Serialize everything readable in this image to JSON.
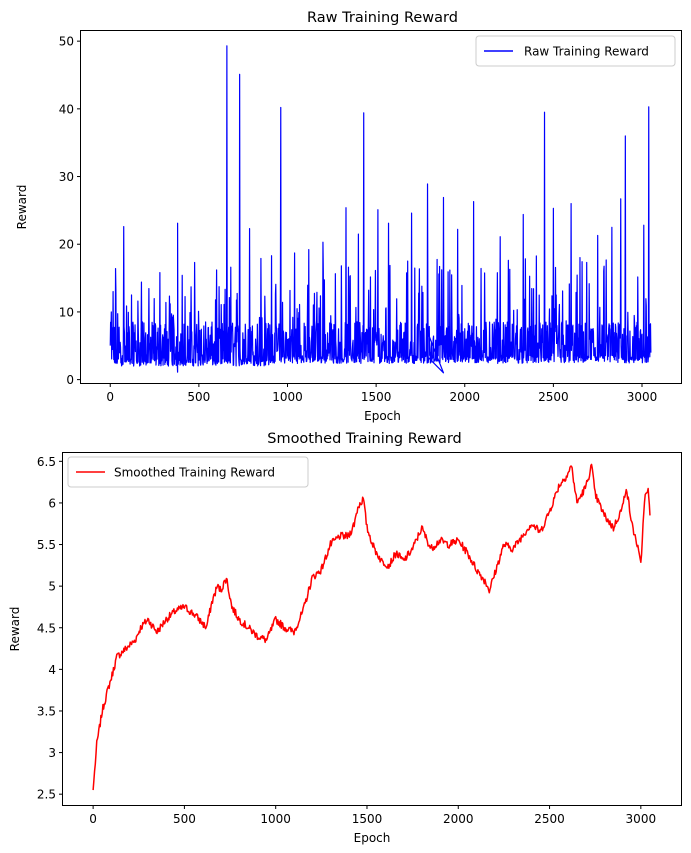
{
  "chart_data": [
    {
      "type": "line",
      "title": "Raw Training Reward",
      "xlabel": "Epoch",
      "ylabel": "Reward",
      "xlim": [
        -165,
        3220
      ],
      "ylim": [
        -0.5,
        51.5
      ],
      "xticks": [
        0,
        500,
        1000,
        1500,
        2000,
        2500,
        3000
      ],
      "yticks": [
        0,
        10,
        20,
        30,
        40,
        50
      ],
      "grid": false,
      "legend": "top-right",
      "series": [
        {
          "name": "Raw Training Reward",
          "color": "#0000ff",
          "baseline": 2.0,
          "typical_high": 7.0,
          "x_end": 3050,
          "spikes": [
            [
              5,
              10
            ],
            [
              15,
              13
            ],
            [
              30,
              16.4
            ],
            [
              75,
              22.6
            ],
            [
              120,
              12.5
            ],
            [
              175,
              14.4
            ],
            [
              280,
              15.8
            ],
            [
              380,
              23.1
            ],
            [
              405,
              15.4
            ],
            [
              475,
              17.3
            ],
            [
              600,
              16.2
            ],
            [
              658,
              49.3
            ],
            [
              680,
              16.6
            ],
            [
              730,
              45.1
            ],
            [
              785,
              22.3
            ],
            [
              850,
              17.9
            ],
            [
              910,
              18.3
            ],
            [
              962,
              40.2
            ],
            [
              1040,
              18.7
            ],
            [
              1120,
              19.2
            ],
            [
              1200,
              20.3
            ],
            [
              1330,
              25.4
            ],
            [
              1400,
              21.5
            ],
            [
              1430,
              39.4
            ],
            [
              1510,
              25.1
            ],
            [
              1570,
              23.1
            ],
            [
              1700,
              24.6
            ],
            [
              1790,
              28.9
            ],
            [
              1880,
              26.9
            ],
            [
              1960,
              22.2
            ],
            [
              2050,
              26.3
            ],
            [
              2200,
              21.1
            ],
            [
              2330,
              24.4
            ],
            [
              2450,
              39.5
            ],
            [
              2500,
              25.3
            ],
            [
              2600,
              26.0
            ],
            [
              2750,
              21.3
            ],
            [
              2830,
              22.5
            ],
            [
              2880,
              26.7
            ],
            [
              2905,
              36.0
            ],
            [
              3010,
              22.8
            ],
            [
              3038,
              40.3
            ]
          ]
        }
      ]
    },
    {
      "type": "line",
      "title": "Smoothed Training Reward",
      "xlabel": "Epoch",
      "ylabel": "Reward",
      "xlim": [
        -165,
        3220
      ],
      "ylim": [
        2.37,
        6.6
      ],
      "xticks": [
        0,
        500,
        1000,
        1500,
        2000,
        2500,
        3000
      ],
      "yticks": [
        2.5,
        3.0,
        3.5,
        4.0,
        4.5,
        5.0,
        5.5,
        6.0,
        6.5
      ],
      "grid": false,
      "legend": "top-left",
      "series": [
        {
          "name": "Smoothed Training Reward",
          "color": "#ff0000",
          "x": [
            0,
            20,
            50,
            80,
            100,
            130,
            180,
            230,
            260,
            300,
            350,
            400,
            450,
            500,
            560,
            620,
            650,
            680,
            700,
            730,
            760,
            800,
            850,
            900,
            950,
            1000,
            1050,
            1100,
            1150,
            1200,
            1250,
            1300,
            1350,
            1400,
            1430,
            1450,
            1480,
            1500,
            1540,
            1580,
            1620,
            1660,
            1700,
            1750,
            1800,
            1850,
            1900,
            1950,
            2000,
            2050,
            2100,
            2150,
            2170,
            2200,
            2250,
            2300,
            2350,
            2400,
            2450,
            2500,
            2550,
            2600,
            2620,
            2650,
            2700,
            2730,
            2750,
            2800,
            2850,
            2900,
            2920,
            2950,
            2980,
            3000,
            3020,
            3040,
            3050
          ],
          "values": [
            2.55,
            3.1,
            3.5,
            3.75,
            3.9,
            4.15,
            4.25,
            4.35,
            4.5,
            4.6,
            4.45,
            4.6,
            4.7,
            4.75,
            4.65,
            4.5,
            4.8,
            5.0,
            4.95,
            5.1,
            4.75,
            4.6,
            4.5,
            4.4,
            4.35,
            4.6,
            4.5,
            4.45,
            4.7,
            5.1,
            5.2,
            5.5,
            5.6,
            5.6,
            5.75,
            5.95,
            6.05,
            5.7,
            5.45,
            5.3,
            5.25,
            5.4,
            5.3,
            5.45,
            5.7,
            5.45,
            5.55,
            5.5,
            5.55,
            5.4,
            5.2,
            5.05,
            4.95,
            5.15,
            5.5,
            5.45,
            5.6,
            5.75,
            5.65,
            5.9,
            6.2,
            6.35,
            6.45,
            6.0,
            6.2,
            6.45,
            6.1,
            5.85,
            5.7,
            5.95,
            6.2,
            5.75,
            5.5,
            5.25,
            6.05,
            6.15,
            5.85
          ]
        }
      ]
    }
  ]
}
